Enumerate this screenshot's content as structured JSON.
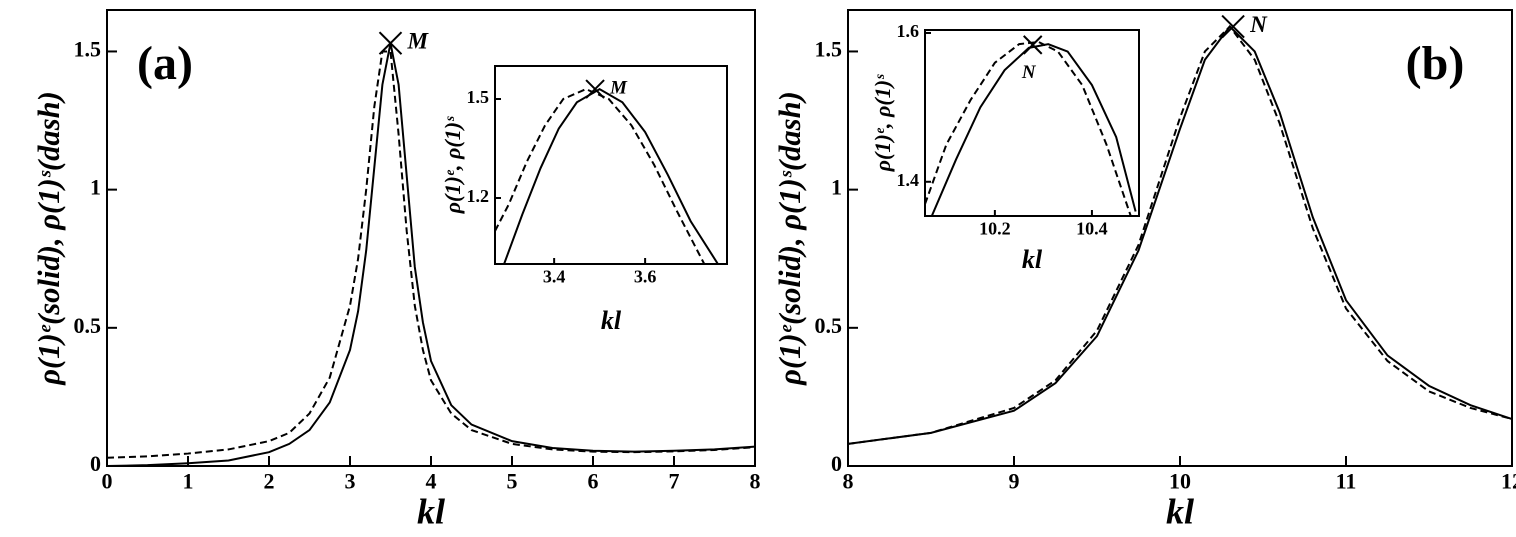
{
  "chart_data": [
    {
      "type": "line",
      "panel_label": "(a)",
      "x_label": "kl",
      "y_label": "ρ(1)ᵉ(solid), ρ(1)ˢ(dash)",
      "xlim": [
        0,
        8
      ],
      "ylim": [
        0,
        1.65
      ],
      "xticks": [
        0,
        1,
        2,
        3,
        4,
        5,
        6,
        7,
        8
      ],
      "yticks": [
        0,
        0.5,
        1,
        1.5
      ],
      "series": [
        {
          "style": "solid",
          "color": "#000000",
          "x": [
            0,
            0.5,
            1,
            1.5,
            2,
            2.25,
            2.5,
            2.75,
            3,
            3.1,
            3.2,
            3.3,
            3.4,
            3.5,
            3.6,
            3.7,
            3.8,
            3.9,
            4,
            4.25,
            4.5,
            5,
            5.5,
            6,
            6.5,
            7,
            7.5,
            8
          ],
          "values": [
            0,
            0.003,
            0.01,
            0.02,
            0.05,
            0.08,
            0.13,
            0.23,
            0.42,
            0.56,
            0.78,
            1.08,
            1.38,
            1.53,
            1.38,
            1.05,
            0.72,
            0.52,
            0.38,
            0.22,
            0.15,
            0.09,
            0.065,
            0.055,
            0.052,
            0.055,
            0.06,
            0.07
          ]
        },
        {
          "style": "dashed",
          "color": "#000000",
          "x": [
            0,
            0.5,
            1,
            1.5,
            2,
            2.25,
            2.5,
            2.75,
            3,
            3.1,
            3.2,
            3.3,
            3.4,
            3.5,
            3.6,
            3.7,
            3.8,
            3.9,
            4,
            4.25,
            4.5,
            5,
            5.5,
            6,
            6.5,
            7,
            7.5,
            8
          ],
          "values": [
            0.03,
            0.035,
            0.045,
            0.06,
            0.09,
            0.12,
            0.19,
            0.32,
            0.58,
            0.75,
            1.0,
            1.3,
            1.5,
            1.5,
            1.2,
            0.85,
            0.58,
            0.42,
            0.31,
            0.19,
            0.13,
            0.08,
            0.06,
            0.052,
            0.05,
            0.053,
            0.058,
            0.068
          ]
        }
      ],
      "annotations": [
        {
          "text": "M",
          "x": 3.5,
          "y": 1.53
        }
      ]
    },
    {
      "type": "line",
      "x_label": "kl",
      "y_label": "ρ(1)ᵉ, ρ(1)ˢ",
      "xlim": [
        3.27,
        3.78
      ],
      "ylim": [
        1.0,
        1.6
      ],
      "xticks": [
        3.4,
        3.6
      ],
      "yticks": [
        1.2,
        1.5
      ],
      "series": [
        {
          "style": "solid",
          "color": "#000000",
          "x": [
            3.29,
            3.33,
            3.37,
            3.41,
            3.45,
            3.5,
            3.55,
            3.6,
            3.65,
            3.7,
            3.76
          ],
          "values": [
            1.0,
            1.15,
            1.29,
            1.41,
            1.49,
            1.53,
            1.49,
            1.4,
            1.27,
            1.13,
            1.0
          ]
        },
        {
          "style": "dashed",
          "color": "#000000",
          "x": [
            3.27,
            3.3,
            3.34,
            3.38,
            3.42,
            3.47,
            3.52,
            3.57,
            3.62,
            3.67,
            3.73
          ],
          "values": [
            1.1,
            1.18,
            1.31,
            1.42,
            1.5,
            1.53,
            1.5,
            1.42,
            1.3,
            1.16,
            1.0
          ]
        }
      ],
      "annotations": [
        {
          "text": "M",
          "x": 3.49,
          "y": 1.53
        }
      ]
    },
    {
      "type": "line",
      "panel_label": "(b)",
      "x_label": "kl",
      "y_label": "ρ(1)ᵉ(solid), ρ(1)ˢ(dash)",
      "xlim": [
        8,
        12
      ],
      "ylim": [
        0,
        1.65
      ],
      "xticks": [
        8,
        9,
        10,
        11,
        12
      ],
      "yticks": [
        0,
        0.5,
        1,
        1.5
      ],
      "series": [
        {
          "style": "solid",
          "color": "#000000",
          "x": [
            8,
            8.5,
            9,
            9.25,
            9.5,
            9.75,
            10,
            10.15,
            10.3,
            10.45,
            10.6,
            10.8,
            11,
            11.25,
            11.5,
            11.75,
            12
          ],
          "values": [
            0.08,
            0.12,
            0.2,
            0.3,
            0.47,
            0.78,
            1.22,
            1.47,
            1.59,
            1.5,
            1.28,
            0.9,
            0.6,
            0.4,
            0.29,
            0.22,
            0.17
          ]
        },
        {
          "style": "dashed",
          "color": "#000000",
          "x": [
            8,
            8.5,
            9,
            9.25,
            9.5,
            9.75,
            10,
            10.15,
            10.3,
            10.45,
            10.6,
            10.8,
            11,
            11.25,
            11.5,
            11.75,
            12
          ],
          "values": [
            0.08,
            0.12,
            0.21,
            0.31,
            0.49,
            0.8,
            1.26,
            1.5,
            1.59,
            1.47,
            1.24,
            0.86,
            0.57,
            0.38,
            0.27,
            0.21,
            0.17
          ]
        }
      ],
      "annotations": [
        {
          "text": "N",
          "x": 10.32,
          "y": 1.59
        }
      ]
    },
    {
      "type": "line",
      "x_label": "kl",
      "y_label": "ρ(1)ᵉ, ρ(1)ˢ",
      "xlim": [
        10.056,
        10.497
      ],
      "ylim": [
        1.354,
        1.604
      ],
      "xticks": [
        10.2,
        10.4
      ],
      "yticks": [
        1.4,
        1.6
      ],
      "series": [
        {
          "style": "solid",
          "color": "#000000",
          "x": [
            10.07,
            10.12,
            10.17,
            10.22,
            10.27,
            10.31,
            10.35,
            10.4,
            10.45,
            10.49
          ],
          "values": [
            1.354,
            1.43,
            1.5,
            1.55,
            1.58,
            1.585,
            1.575,
            1.53,
            1.46,
            1.36
          ]
        },
        {
          "style": "dashed",
          "color": "#000000",
          "x": [
            10.056,
            10.1,
            10.15,
            10.2,
            10.25,
            10.29,
            10.33,
            10.38,
            10.43,
            10.48
          ],
          "values": [
            1.37,
            1.45,
            1.51,
            1.56,
            1.585,
            1.588,
            1.575,
            1.53,
            1.45,
            1.354
          ]
        }
      ],
      "annotations": [
        {
          "text": "N",
          "x": 10.278,
          "y": 1.584
        }
      ]
    }
  ]
}
